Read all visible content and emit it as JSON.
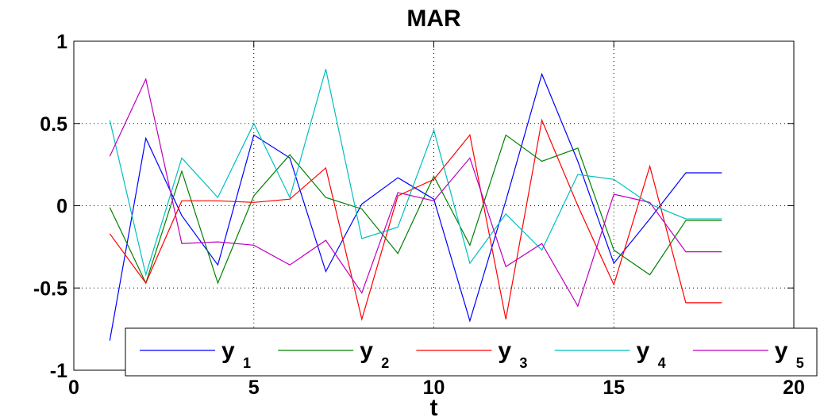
{
  "chart_data": {
    "type": "line",
    "title": "MAR",
    "xlabel": "t",
    "ylabel": "",
    "xlim": [
      0,
      20
    ],
    "ylim": [
      -1,
      1
    ],
    "xticks": [
      0,
      5,
      10,
      15,
      20
    ],
    "xtick_labels": [
      "0",
      "5",
      "10",
      "15",
      "20"
    ],
    "yticks": [
      -1,
      -0.5,
      0,
      0.5,
      1
    ],
    "ytick_labels": [
      "-1",
      "-0.5",
      "0",
      "0.5",
      "1"
    ],
    "grid": true,
    "legend_position": "bottom",
    "x": [
      1,
      2,
      3,
      4,
      5,
      6,
      7,
      8,
      9,
      10,
      11,
      12,
      13,
      14,
      15,
      16,
      17,
      18
    ],
    "series": [
      {
        "name": "y",
        "subscript": "1",
        "color": "#0000ff",
        "values": [
          -0.82,
          0.41,
          -0.06,
          -0.36,
          0.43,
          0.29,
          -0.4,
          0.01,
          0.17,
          0.04,
          -0.7,
          0.03,
          0.8,
          0.27,
          -0.35,
          -0.08,
          0.2,
          0.2
        ]
      },
      {
        "name": "y",
        "subscript": "2",
        "color": "#008000",
        "values": [
          -0.01,
          -0.47,
          0.21,
          -0.47,
          0.06,
          0.31,
          0.05,
          -0.02,
          -0.29,
          0.18,
          -0.24,
          0.43,
          0.27,
          0.35,
          -0.27,
          -0.42,
          -0.09,
          -0.09
        ]
      },
      {
        "name": "y",
        "subscript": "3",
        "color": "#ff0000",
        "values": [
          -0.17,
          -0.47,
          0.03,
          0.03,
          0.02,
          0.04,
          0.23,
          -0.69,
          0.06,
          0.16,
          0.43,
          -0.69,
          0.52,
          0.0,
          -0.48,
          0.24,
          -0.59,
          -0.59
        ]
      },
      {
        "name": "y",
        "subscript": "4",
        "color": "#00bfbf",
        "values": [
          0.52,
          -0.42,
          0.29,
          0.05,
          0.5,
          0.05,
          0.83,
          -0.2,
          -0.13,
          0.46,
          -0.35,
          -0.05,
          -0.27,
          0.19,
          0.16,
          0.01,
          -0.08,
          -0.08
        ]
      },
      {
        "name": "y",
        "subscript": "5",
        "color": "#bf00bf",
        "values": [
          0.3,
          0.77,
          -0.23,
          -0.22,
          -0.24,
          -0.36,
          -0.21,
          -0.53,
          0.08,
          0.03,
          0.29,
          -0.37,
          -0.23,
          -0.61,
          0.07,
          0.02,
          -0.28,
          -0.28
        ]
      }
    ]
  }
}
